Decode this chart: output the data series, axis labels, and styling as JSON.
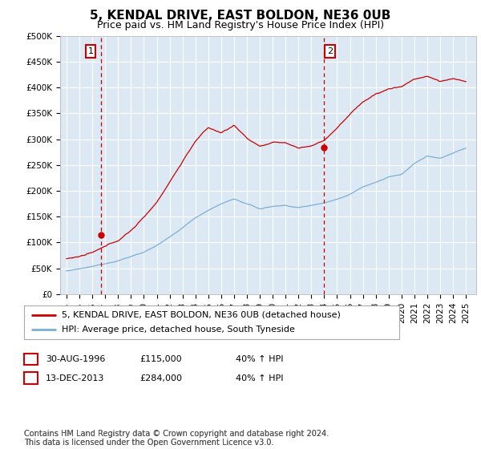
{
  "title": "5, KENDAL DRIVE, EAST BOLDON, NE36 0UB",
  "subtitle": "Price paid vs. HM Land Registry's House Price Index (HPI)",
  "property_color": "#cc0000",
  "hpi_color": "#7bafd4",
  "vline_color": "#cc0000",
  "purchase1_year": 1996.66,
  "purchase1_price": 115000,
  "purchase2_year": 2013.95,
  "purchase2_price": 284000,
  "legend_line1": "5, KENDAL DRIVE, EAST BOLDON, NE36 0UB (detached house)",
  "legend_line2": "HPI: Average price, detached house, South Tyneside",
  "ylim": [
    0,
    500000
  ],
  "yticks": [
    0,
    50000,
    100000,
    150000,
    200000,
    250000,
    300000,
    350000,
    400000,
    450000,
    500000
  ],
  "ytick_labels": [
    "£0",
    "£50K",
    "£100K",
    "£150K",
    "£200K",
    "£250K",
    "£300K",
    "£350K",
    "£400K",
    "£450K",
    "£500K"
  ],
  "xlim_start": 1993.5,
  "xlim_end": 2025.8,
  "xtick_start": 1994,
  "xtick_end": 2025,
  "background_color": "#ffffff",
  "plot_bg_color": "#dce9f5",
  "grid_color": "#ffffff",
  "title_fontsize": 11,
  "subtitle_fontsize": 9,
  "tick_fontsize": 7.5,
  "legend_fontsize": 8,
  "footnote_fontsize": 8,
  "copyright_fontsize": 7,
  "hpi_waypoints_x": [
    1994,
    1995,
    1996,
    1997,
    1998,
    1999,
    2000,
    2001,
    2002,
    2003,
    2004,
    2005,
    2006,
    2007,
    2008,
    2009,
    2010,
    2011,
    2012,
    2013,
    2014,
    2015,
    2016,
    2017,
    2018,
    2019,
    2020,
    2021,
    2022,
    2023,
    2024,
    2025
  ],
  "hpi_waypoints_y": [
    45000,
    48000,
    52000,
    58000,
    65000,
    73000,
    82000,
    95000,
    110000,
    128000,
    148000,
    163000,
    175000,
    185000,
    175000,
    165000,
    170000,
    172000,
    168000,
    172000,
    178000,
    185000,
    195000,
    210000,
    220000,
    230000,
    235000,
    255000,
    270000,
    265000,
    275000,
    285000
  ],
  "prop_waypoints_x": [
    1994,
    1995,
    1996,
    1997,
    1998,
    1999,
    2000,
    2001,
    2002,
    2003,
    2004,
    2005,
    2006,
    2007,
    2008,
    2009,
    2010,
    2011,
    2012,
    2013,
    2014,
    2015,
    2016,
    2017,
    2018,
    2019,
    2020,
    2021,
    2022,
    2023,
    2024,
    2025
  ],
  "prop_waypoints_y": [
    68000,
    72000,
    78000,
    88000,
    100000,
    120000,
    145000,
    175000,
    215000,
    255000,
    295000,
    320000,
    310000,
    325000,
    300000,
    285000,
    290000,
    290000,
    280000,
    284000,
    295000,
    320000,
    345000,
    370000,
    385000,
    395000,
    400000,
    415000,
    420000,
    410000,
    415000,
    410000
  ]
}
